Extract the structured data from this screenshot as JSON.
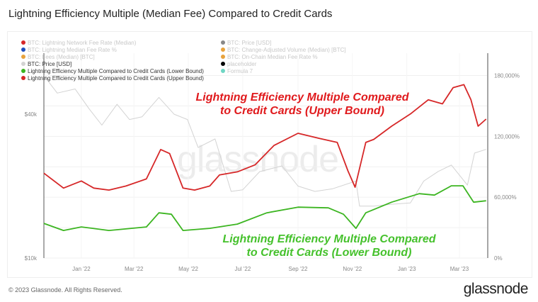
{
  "title": "Lightning Efficiency Multiple (Median Fee) Compared to Credit Cards",
  "legend": {
    "left": [
      {
        "label": "BTC: Lightning Network Fee Rate (Median)",
        "color": "#d62728",
        "active": false
      },
      {
        "label": "BTC: Lightning Median Fee Rate %",
        "color": "#1f4fbf",
        "active": false
      },
      {
        "label": "BTC: Fees (Median) [BTC]",
        "color": "#e8a33d",
        "active": false
      },
      {
        "label": "BTC: Price [USD]",
        "color": "#d3d3d3",
        "active": true
      },
      {
        "label": "Lightning Efficiency Multiple Compared to Credit Cards (Lower Bound)",
        "color": "#3cb521",
        "active": true
      },
      {
        "label": "Lightning Efficiency Multiple Compared to Credit Cards (Upper Bound)",
        "color": "#d62728",
        "active": true
      }
    ],
    "right": [
      {
        "label": "BTC: Price [USD]",
        "color": "#888888",
        "active": false
      },
      {
        "label": "BTC: Change-Adjusted Volume (Median) [BTC]",
        "color": "#e8a33d",
        "active": false
      },
      {
        "label": "BTC: On-Chain Median Fee Rate %",
        "color": "#e8a33d",
        "active": false
      },
      {
        "label": "placeholder",
        "color": "#000000",
        "active": false
      },
      {
        "label": "Formula 7",
        "color": "#6fd6c4",
        "active": false
      }
    ]
  },
  "annotations": {
    "upper_line1": "Lightning Efficiency Multiple Compared",
    "upper_line2": "to Credit Cards (Upper Bound)",
    "lower_line1": "Lightning Efficiency Multiple Compared",
    "lower_line2": "to Credit Cards (Lower Bound)"
  },
  "watermark": "glassnode",
  "footer": "© 2023 Glassnode. All Rights Reserved.",
  "brand": "glassnode",
  "chart_data": {
    "type": "line",
    "title": "Lightning Efficiency Multiple (Median Fee) Compared to Credit Cards",
    "x_ticks": [
      "Jan '22",
      "Mar '22",
      "May '22",
      "Jul '22",
      "Sep '22",
      "Nov '22",
      "Jan '23",
      "Mar '23"
    ],
    "x_tick_dates": [
      "2022-01-01",
      "2022-03-01",
      "2022-05-01",
      "2022-07-01",
      "2022-09-01",
      "2022-11-01",
      "2023-01-01",
      "2023-03-01"
    ],
    "x_range": [
      "2021-11-20",
      "2023-04-01"
    ],
    "y_left": {
      "scale": "log",
      "ticks": [
        "$10k",
        "$40k"
      ],
      "tick_values": [
        10000,
        40000
      ],
      "range": [
        10000,
        72000
      ]
    },
    "y_right": {
      "scale": "linear",
      "ticks": [
        "0%",
        "60,000%",
        "120,000%",
        "180,000%"
      ],
      "tick_values": [
        0,
        60000,
        120000,
        180000
      ],
      "range": [
        0,
        202000
      ]
    },
    "grid": true,
    "legend_position": "top-left",
    "series": [
      {
        "name": "Lightning Efficiency Multiple Compared to Credit Cards (Upper Bound)",
        "axis": "right",
        "color": "#d62728",
        "x": [
          "2021-11-20",
          "2021-12-12",
          "2022-01-01",
          "2022-01-15",
          "2022-02-01",
          "2022-02-20",
          "2022-03-15",
          "2022-03-31",
          "2022-04-10",
          "2022-04-25",
          "2022-05-08",
          "2022-05-25",
          "2022-06-05",
          "2022-06-25",
          "2022-07-15",
          "2022-08-05",
          "2022-09-01",
          "2022-09-25",
          "2022-10-15",
          "2022-10-27",
          "2022-11-04",
          "2022-11-16",
          "2022-11-25",
          "2022-12-15",
          "2023-01-05",
          "2023-01-25",
          "2023-02-10",
          "2023-02-22",
          "2023-03-06",
          "2023-03-14",
          "2023-03-22",
          "2023-03-31"
        ],
        "values": [
          83700,
          69000,
          76000,
          69000,
          67000,
          71000,
          78000,
          107000,
          103000,
          69000,
          67000,
          71000,
          82000,
          85000,
          92000,
          111000,
          123000,
          118000,
          114000,
          86000,
          69800,
          114000,
          117000,
          130000,
          142000,
          156000,
          152000,
          168000,
          171000,
          156000,
          130000,
          137000
        ]
      },
      {
        "name": "Lightning Efficiency Multiple Compared to Credit Cards (Lower Bound)",
        "axis": "right",
        "color": "#3cb521",
        "x": [
          "2021-11-20",
          "2021-12-12",
          "2022-01-01",
          "2022-02-01",
          "2022-03-15",
          "2022-03-29",
          "2022-04-12",
          "2022-04-25",
          "2022-05-25",
          "2022-06-25",
          "2022-07-28",
          "2022-09-01",
          "2022-10-05",
          "2022-10-22",
          "2022-11-05",
          "2022-11-16",
          "2022-12-15",
          "2023-01-15",
          "2023-02-01",
          "2023-02-20",
          "2023-03-05",
          "2023-03-17",
          "2023-03-31"
        ],
        "values": [
          34200,
          27200,
          30700,
          27200,
          30700,
          44600,
          43200,
          27200,
          29300,
          33500,
          44600,
          50200,
          49500,
          43200,
          29300,
          44600,
          55100,
          63500,
          62100,
          71200,
          71200,
          55100,
          56500
        ]
      },
      {
        "name": "BTC: Price [USD]",
        "axis": "left",
        "color": "#d3d3d3",
        "x": [
          "2021-11-20",
          "2021-12-05",
          "2021-12-25",
          "2022-01-10",
          "2022-01-24",
          "2022-02-10",
          "2022-02-24",
          "2022-03-10",
          "2022-03-29",
          "2022-04-15",
          "2022-04-30",
          "2022-05-12",
          "2022-05-31",
          "2022-06-18",
          "2022-07-01",
          "2022-07-20",
          "2022-08-14",
          "2022-09-01",
          "2022-09-20",
          "2022-10-10",
          "2022-11-05",
          "2022-11-09",
          "2022-11-25",
          "2022-12-15",
          "2023-01-05",
          "2023-01-20",
          "2023-02-05",
          "2023-02-20",
          "2023-03-10",
          "2023-03-18",
          "2023-03-31"
        ],
        "values": [
          58000,
          49000,
          51000,
          42000,
          36000,
          44000,
          38000,
          39000,
          47000,
          40000,
          38000,
          29000,
          31500,
          19000,
          19300,
          23000,
          24300,
          20000,
          19000,
          19500,
          21000,
          16500,
          16500,
          16800,
          17000,
          21000,
          23000,
          24500,
          20200,
          27500,
          28500
        ]
      }
    ]
  }
}
